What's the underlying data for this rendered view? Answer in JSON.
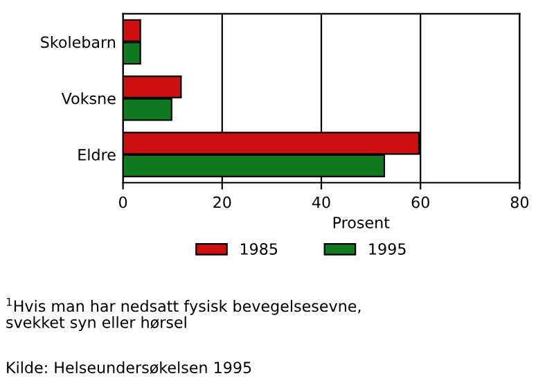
{
  "chart_data": {
    "type": "bar",
    "orientation": "horizontal",
    "categories": [
      "Skolebarn",
      "Voksne",
      "Eldre"
    ],
    "series": [
      {
        "name": "1985",
        "color": "#cc1010",
        "values": [
          3.5,
          11.7,
          59.7
        ]
      },
      {
        "name": "1995",
        "color": "#107a20",
        "values": [
          3.5,
          9.8,
          52.7
        ]
      }
    ],
    "xlabel": "Prosent",
    "xlim": [
      0,
      80
    ],
    "xticks": [
      0,
      20,
      40,
      60,
      80
    ],
    "grid": "x",
    "legend": "bottom",
    "annotations": [
      "$^{1}$Hvis man har nedsatt fysisk bevegelsesevne,\nsvekket syn eller hørsel",
      "Kilde: Helseundersøkelsen 1995"
    ]
  }
}
